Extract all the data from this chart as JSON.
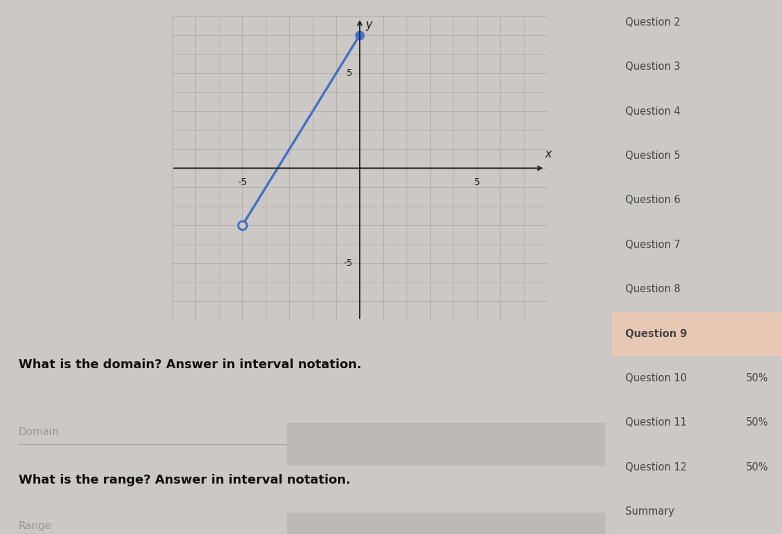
{
  "bg_color": "#ccc8c5",
  "graph_bg": "#ccc8c5",
  "grid_color": "#aaa8a0",
  "grid_color_major": "#888680",
  "line_color": "#4472c4",
  "line_x": [
    -5,
    0
  ],
  "line_y": [
    -3,
    7
  ],
  "open_point": [
    -5,
    -3
  ],
  "closed_point": [
    0,
    7
  ],
  "xlim": [
    -8,
    8
  ],
  "ylim": [
    -8,
    8
  ],
  "xtick_pos": -5,
  "xtick_pos2": 5,
  "ytick_pos": 5,
  "ytick_neg": -5,
  "xlabel": "x",
  "ylabel": "y",
  "domain_question": "What is the domain? Answer in interval notation.",
  "domain_placeholder": "Domain",
  "range_question": "What is the range? Answer in interval notation.",
  "range_placeholder": "Range",
  "sidebar_items": [
    {
      "text": "Question 2",
      "bold": false,
      "highlight": false,
      "score": null
    },
    {
      "text": "Question 3",
      "bold": false,
      "highlight": false,
      "score": null
    },
    {
      "text": "Question 4",
      "bold": false,
      "highlight": false,
      "score": null
    },
    {
      "text": "Question 5",
      "bold": false,
      "highlight": false,
      "score": null
    },
    {
      "text": "Question 6",
      "bold": false,
      "highlight": false,
      "score": null
    },
    {
      "text": "Question 7",
      "bold": false,
      "highlight": false,
      "score": null
    },
    {
      "text": "Question 8",
      "bold": false,
      "highlight": false,
      "score": null
    },
    {
      "text": "Question 9",
      "bold": true,
      "highlight": true,
      "score": null
    },
    {
      "text": "Question 10",
      "bold": false,
      "highlight": false,
      "score": "50%"
    },
    {
      "text": "Question 11",
      "bold": false,
      "highlight": false,
      "score": "50%"
    },
    {
      "text": "Question 12",
      "bold": false,
      "highlight": false,
      "score": "50%"
    },
    {
      "text": "Summary",
      "bold": false,
      "highlight": false,
      "score": null
    }
  ],
  "sidebar_bg": "#e8e5e2",
  "sidebar_highlight_color": "#e8c8b4",
  "sidebar_text_color": "#444444",
  "sidebar_border_color": "#d0cdc8",
  "input_box_color": "#bcb9b6",
  "input_underline_color": "#aaa8a4",
  "main_bg": "#ccc8c5",
  "question_text_color": "#111111",
  "placeholder_color": "#999794"
}
